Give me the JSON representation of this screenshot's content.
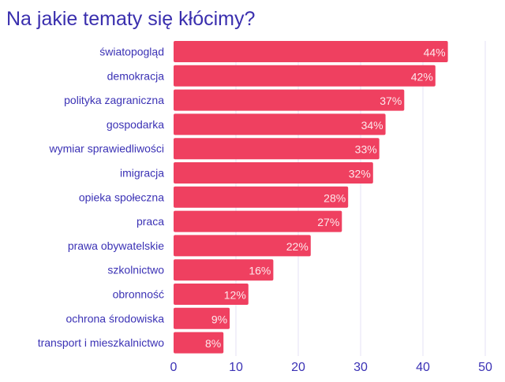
{
  "chart_data": {
    "type": "bar",
    "orientation": "horizontal",
    "title": "Na jakie tematy się kłócimy?",
    "categories": [
      "światopogląd",
      "demokracja",
      "polityka zagraniczna",
      "gospodarka",
      "wymiar sprawiedliwości",
      "imigracja",
      "opieka społeczna",
      "praca",
      "prawa obywatelskie",
      "szkolnictwo",
      "obronność",
      "ochrona środowiska",
      "transport i mieszkalnictwo"
    ],
    "values": [
      44,
      42,
      37,
      34,
      33,
      32,
      28,
      27,
      22,
      16,
      12,
      9,
      8
    ],
    "value_labels": [
      "44%",
      "42%",
      "37%",
      "34%",
      "33%",
      "32%",
      "28%",
      "27%",
      "22%",
      "16%",
      "12%",
      "9%",
      "8%"
    ],
    "xlim": [
      0,
      50
    ],
    "xticks": [
      "0",
      "10",
      "20",
      "30",
      "40",
      "50"
    ],
    "grid": true,
    "colors": {
      "bar": "#ef4060",
      "text": "#3b32b5",
      "grid": "#e4e2f5"
    }
  }
}
